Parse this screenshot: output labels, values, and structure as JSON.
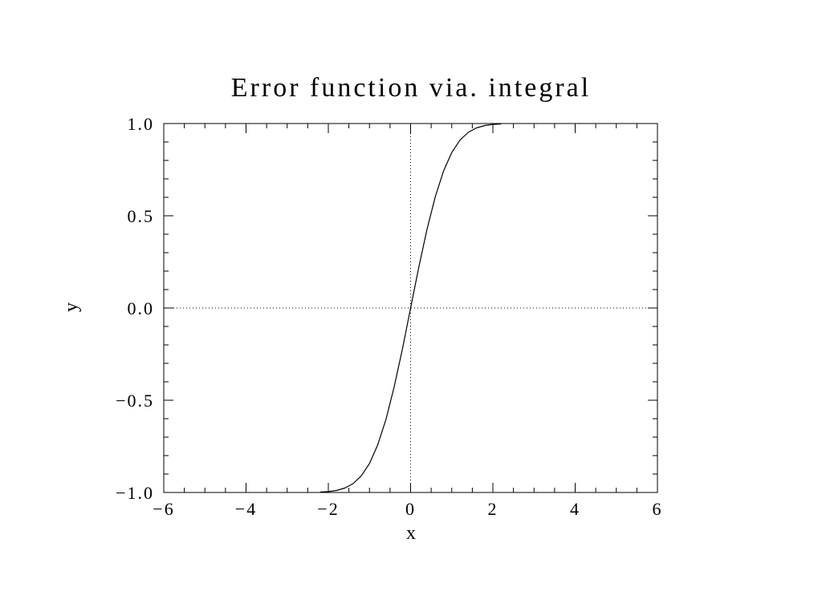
{
  "chart_data": {
    "type": "line",
    "title": "Error function via. integral",
    "xlabel": "x",
    "ylabel": "y",
    "xlim": [
      -6,
      6
    ],
    "ylim": [
      -1.0,
      1.0
    ],
    "xticks": [
      -6,
      -4,
      -2,
      0,
      2,
      4,
      6
    ],
    "xtick_labels": [
      "−6",
      "−4",
      "−2",
      "0",
      "2",
      "4",
      "6"
    ],
    "yticks": [
      -1.0,
      -0.5,
      0.0,
      0.5,
      1.0
    ],
    "ytick_labels": [
      "−1.0",
      "−0.5",
      "0.0",
      "0.5",
      "1.0"
    ],
    "grid": false,
    "reference_lines": {
      "x": 0,
      "y": 0,
      "style": "dotted"
    },
    "series": [
      {
        "x": [
          -2.2,
          -2.0,
          -1.8,
          -1.6,
          -1.4,
          -1.2,
          -1.0,
          -0.8,
          -0.6,
          -0.4,
          -0.2,
          0.0,
          0.2,
          0.4,
          0.6,
          0.8,
          1.0,
          1.2,
          1.4,
          1.6,
          1.8,
          2.0,
          2.2
        ],
        "values": [
          -0.998,
          -0.995,
          -0.989,
          -0.976,
          -0.952,
          -0.91,
          -0.843,
          -0.742,
          -0.604,
          -0.428,
          -0.223,
          0.0,
          0.223,
          0.428,
          0.604,
          0.742,
          0.843,
          0.91,
          0.952,
          0.976,
          0.989,
          0.995,
          0.998
        ]
      }
    ]
  }
}
